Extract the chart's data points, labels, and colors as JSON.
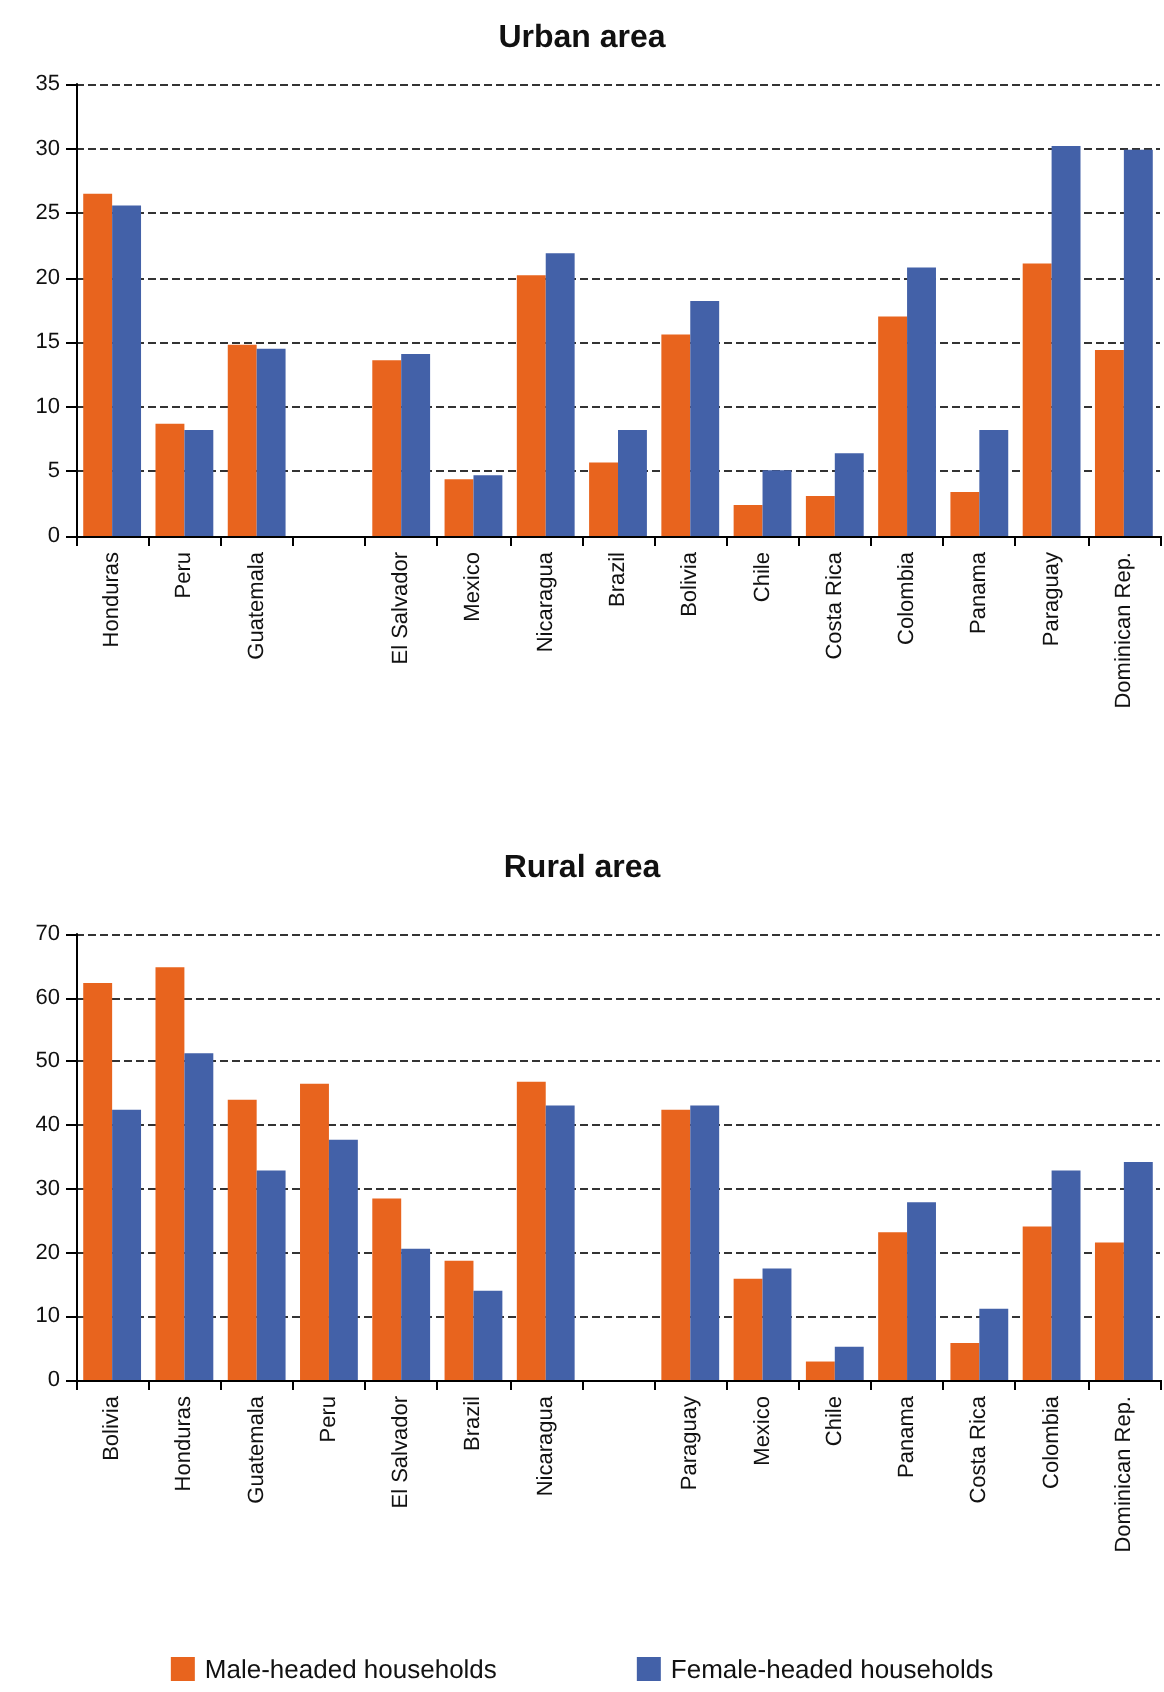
{
  "chart_data": [
    {
      "type": "bar",
      "title": "Urban area",
      "categories": [
        "Honduras",
        "Peru",
        "Guatemala",
        null,
        "El Salvador",
        "Mexico",
        "Nicaragua",
        "Brazil",
        "Bolivia",
        "Chile",
        "Costa Rica",
        "Colombia",
        "Panama",
        "Paraguay",
        "Dominican Rep."
      ],
      "series": [
        {
          "color": "#e8641e",
          "values": [
            26.5,
            8.7,
            14.8,
            null,
            13.6,
            4.4,
            20.2,
            5.7,
            15.6,
            2.4,
            3.1,
            17.0,
            3.4,
            21.1,
            14.4
          ]
        },
        {
          "color": "#4361a8",
          "values": [
            25.6,
            8.2,
            14.5,
            null,
            14.1,
            4.7,
            21.9,
            8.2,
            18.2,
            5.1,
            6.4,
            20.8,
            8.2,
            30.2,
            29.9
          ]
        }
      ],
      "ylim": [
        0,
        35
      ],
      "yticks": [
        0,
        5,
        10,
        15,
        20,
        25,
        30,
        35
      ],
      "grid": "y",
      "legend": false
    },
    {
      "type": "bar",
      "title": "Rural area",
      "categories": [
        "Bolivia",
        "Honduras",
        "Guatemala",
        "Peru",
        "El Salvador",
        "Brazil",
        "Nicaragua",
        null,
        "Paraguay",
        "Mexico",
        "Chile",
        "Panama",
        "Costa Rica",
        "Colombia",
        "Dominican Rep."
      ],
      "series": [
        {
          "name": "Male-headed households",
          "color": "#e8641e",
          "values": [
            62.3,
            64.8,
            44.0,
            46.5,
            28.5,
            18.7,
            46.8,
            null,
            42.4,
            15.9,
            2.9,
            23.2,
            5.8,
            24.1,
            21.6
          ]
        },
        {
          "name": "Female-headed households",
          "color": "#4361a8",
          "values": [
            42.4,
            51.3,
            32.9,
            37.7,
            20.6,
            14.0,
            43.1,
            null,
            43.1,
            17.5,
            5.2,
            27.9,
            11.2,
            32.9,
            34.2
          ]
        }
      ],
      "ylim": [
        0,
        70
      ],
      "yticks": [
        0,
        10,
        20,
        30,
        40,
        50,
        60,
        70
      ],
      "grid": "y",
      "legend": "bottom"
    }
  ]
}
